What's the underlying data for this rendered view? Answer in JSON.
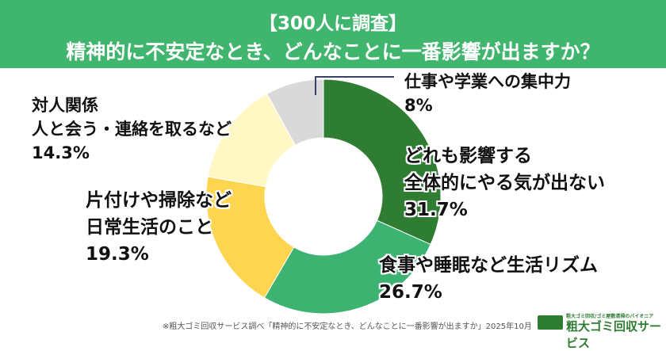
{
  "header": {
    "line1": "【300人に調査】",
    "line2": "精神的に不安定なとき、どんなことに一番影響が出ますか？"
  },
  "chart_data": {
    "type": "pie",
    "donut": true,
    "title": "精神的に不安定なとき、どんなことに一番影響が出ますか？",
    "categories": [
      "どれも影響する 全体的にやる気が出ない",
      "食事や睡眠など生活リズム",
      "片付けや掃除など 日常生活のこと",
      "対人関係 人と会う・連絡を取るなど",
      "仕事や学業への集中力"
    ],
    "values": [
      31.7,
      26.7,
      19.3,
      14.3,
      8
    ],
    "unit": "%",
    "colors": [
      "#2e7d32",
      "#3cb371",
      "#ffd54f",
      "#fff8c4",
      "#d9d9d9"
    ],
    "labels": [
      {
        "lines": [
          "どれも影響する",
          "全体的にやる気が出ない"
        ],
        "pct": "31.7%"
      },
      {
        "lines": [
          "食事や睡眠など生活リズム"
        ],
        "pct": "26.7%"
      },
      {
        "lines": [
          "片付けや掃除など",
          "日常生活のこと"
        ],
        "pct": "19.3%"
      },
      {
        "lines": [
          "対人関係",
          "人と会う・連絡を取るなど"
        ],
        "pct": "14.3%"
      },
      {
        "lines": [
          "仕事や学業への集中力"
        ],
        "pct": "8%"
      }
    ]
  },
  "footnote": "※粗大ゴミ回収サービス調べ「精神的に不安定なとき、どんなことに一番影響が出ますか」2025年10月",
  "logo": {
    "tagline": "粗大ゴミ回収/ゴミ屋敷清掃のパイオニア",
    "name": "粗大ゴミ回収サービス"
  }
}
